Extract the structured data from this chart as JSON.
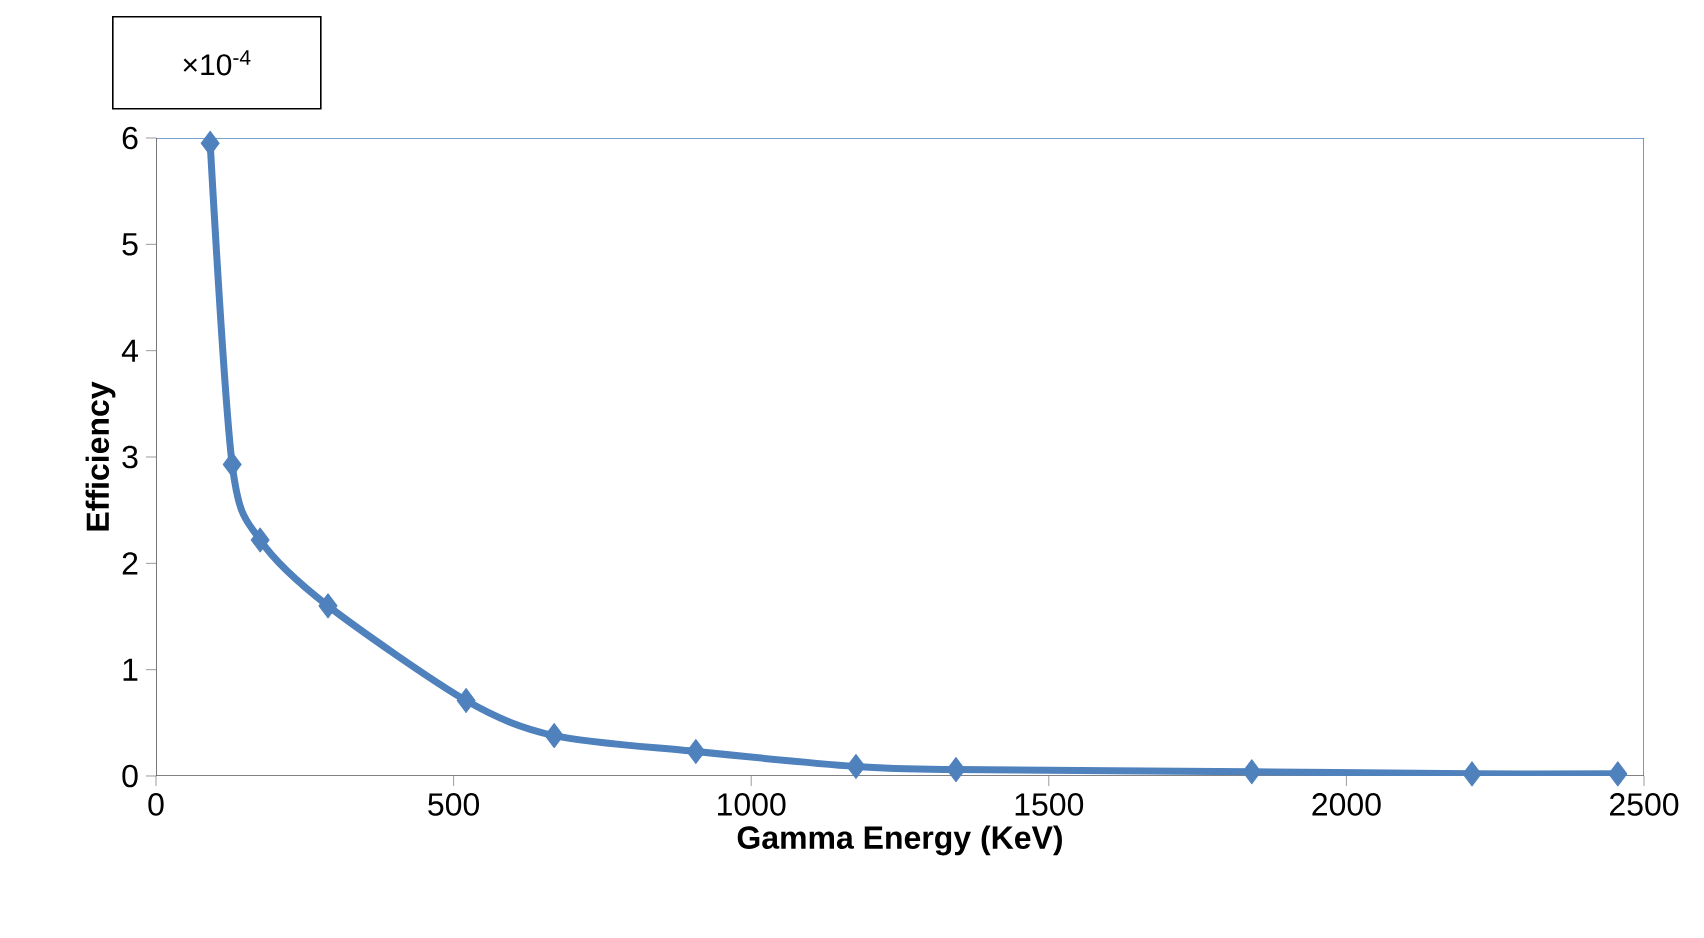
{
  "chart_data": {
    "type": "line",
    "xlabel": "Gamma Energy (KeV)",
    "ylabel": "Efficiency",
    "annotations": [
      "×10$^{-4}$"
    ],
    "x": [
      91,
      128,
      175,
      289,
      521,
      669,
      907,
      1176,
      1344,
      1841,
      2211,
      2456
    ],
    "series": [
      {
        "color": "#4f81bd",
        "values": [
          5.95,
          2.93,
          2.22,
          1.6,
          0.71,
          0.38,
          0.23,
          0.09,
          0.06,
          0.04,
          0.02,
          0.02
        ]
      }
    ],
    "xlim": [
      0,
      2500
    ],
    "ylim": [
      0,
      6
    ],
    "xticks": [
      0,
      500,
      1000,
      1500,
      2000,
      2500
    ],
    "yticks": [
      0,
      1,
      2,
      3,
      4,
      5,
      6
    ],
    "marker": "diamond",
    "line_style": "solid"
  }
}
